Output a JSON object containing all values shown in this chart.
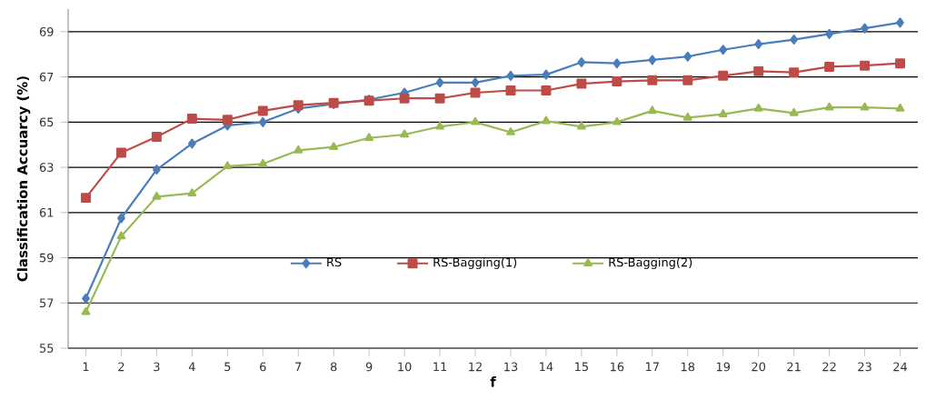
{
  "chart_data": {
    "type": "line",
    "xlabel": "f",
    "ylabel": "Classification Accuarcy (%)",
    "categories": [
      "1",
      "2",
      "3",
      "4",
      "5",
      "6",
      "7",
      "8",
      "9",
      "10",
      "11",
      "12",
      "13",
      "14",
      "15",
      "16",
      "17",
      "18",
      "19",
      "20",
      "21",
      "22",
      "23",
      "24"
    ],
    "series": [
      {
        "name": "RS",
        "color": "#4a7ebb",
        "marker": "diamond",
        "values": [
          57.2,
          60.75,
          62.9,
          64.05,
          64.85,
          65.0,
          65.6,
          65.8,
          66.0,
          66.3,
          66.75,
          66.75,
          67.05,
          67.1,
          67.65,
          67.6,
          67.75,
          67.9,
          68.2,
          68.45,
          68.65,
          68.9,
          69.15,
          69.4
        ]
      },
      {
        "name": "RS-Bagging(1)",
        "color": "#be4b48",
        "marker": "square",
        "values": [
          61.65,
          63.65,
          64.35,
          65.15,
          65.1,
          65.5,
          65.75,
          65.85,
          65.95,
          66.05,
          66.05,
          66.3,
          66.4,
          66.4,
          66.7,
          66.8,
          66.85,
          66.85,
          67.05,
          67.25,
          67.2,
          67.45,
          67.5,
          67.6
        ]
      },
      {
        "name": "RS-Bagging(2)",
        "color": "#98b954",
        "marker": "triangle",
        "values": [
          56.6,
          59.95,
          61.7,
          61.85,
          63.05,
          63.15,
          63.75,
          63.9,
          64.3,
          64.45,
          64.8,
          65.0,
          64.55,
          65.05,
          64.8,
          65.0,
          65.5,
          65.2,
          65.35,
          65.6,
          65.4,
          65.65,
          65.65,
          65.6
        ]
      }
    ],
    "ylim": [
      55,
      70
    ],
    "yticks": [
      55,
      57,
      59,
      61,
      63,
      65,
      67,
      69
    ],
    "grid": "y",
    "legend": "bottom",
    "line_style": "solid"
  }
}
